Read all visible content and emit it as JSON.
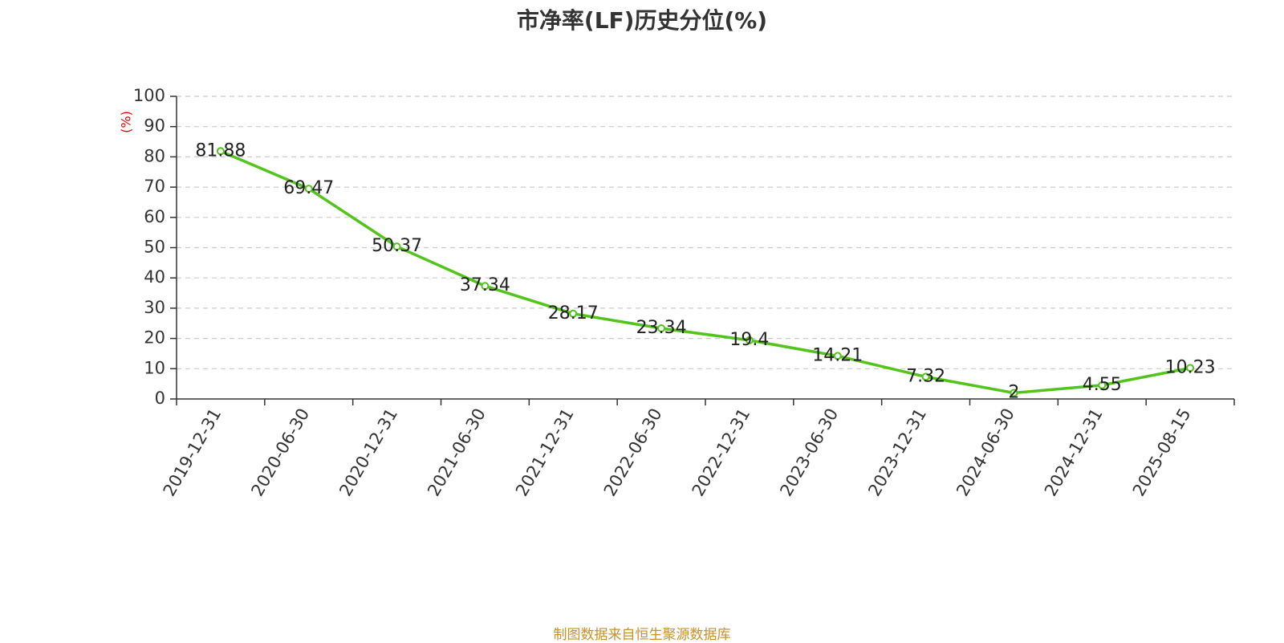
{
  "title": "市净率(LF)历史分位(%)",
  "source": "制图数据来自恒生聚源数据库",
  "colors": {
    "line": "#52c41a",
    "grid": "#cccccc",
    "axis": "#333333",
    "ylabel": "#e00000",
    "source": "#c8912a"
  },
  "chart_data": {
    "type": "line",
    "title": "市净率(LF)历史分位(%)",
    "ylabel": "(%)",
    "xlabel": "",
    "categories": [
      "2019-12-31",
      "2020-06-30",
      "2020-12-31",
      "2021-06-30",
      "2021-12-31",
      "2022-06-30",
      "2022-12-31",
      "2023-06-30",
      "2023-12-31",
      "2024-06-30",
      "2024-12-31",
      "2025-08-15"
    ],
    "values": [
      81.88,
      69.47,
      50.37,
      37.34,
      28.17,
      23.34,
      19.4,
      14.21,
      7.32,
      2,
      4.55,
      10.23
    ],
    "ylim": [
      0,
      100
    ],
    "yticks": [
      0,
      10,
      20,
      30,
      40,
      50,
      60,
      70,
      80,
      90,
      100
    ],
    "grid": true,
    "data_labels": true
  }
}
